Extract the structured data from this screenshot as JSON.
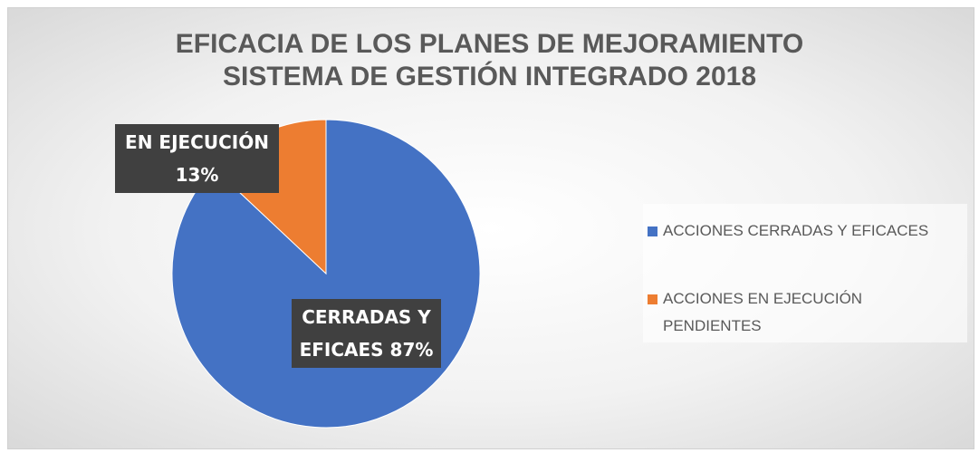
{
  "chart_data": {
    "type": "pie",
    "title": [
      "EFICACIA DE LOS PLANES DE MEJORAMIENTO",
      "SISTEMA DE GESTIÓN INTEGRADO 2018"
    ],
    "categories": [
      "ACCIONES CERRADAS Y EFICACES",
      "ACCIONES EN EJECUCIÓN PENDIENTES"
    ],
    "values": [
      87,
      13
    ],
    "value_labels": [
      "CERRADAS Y EFICAES 87%",
      "EN EJECUCIÓN 13%"
    ],
    "colors": [
      "#4472c4",
      "#ed7d31"
    ],
    "legend": "right"
  }
}
